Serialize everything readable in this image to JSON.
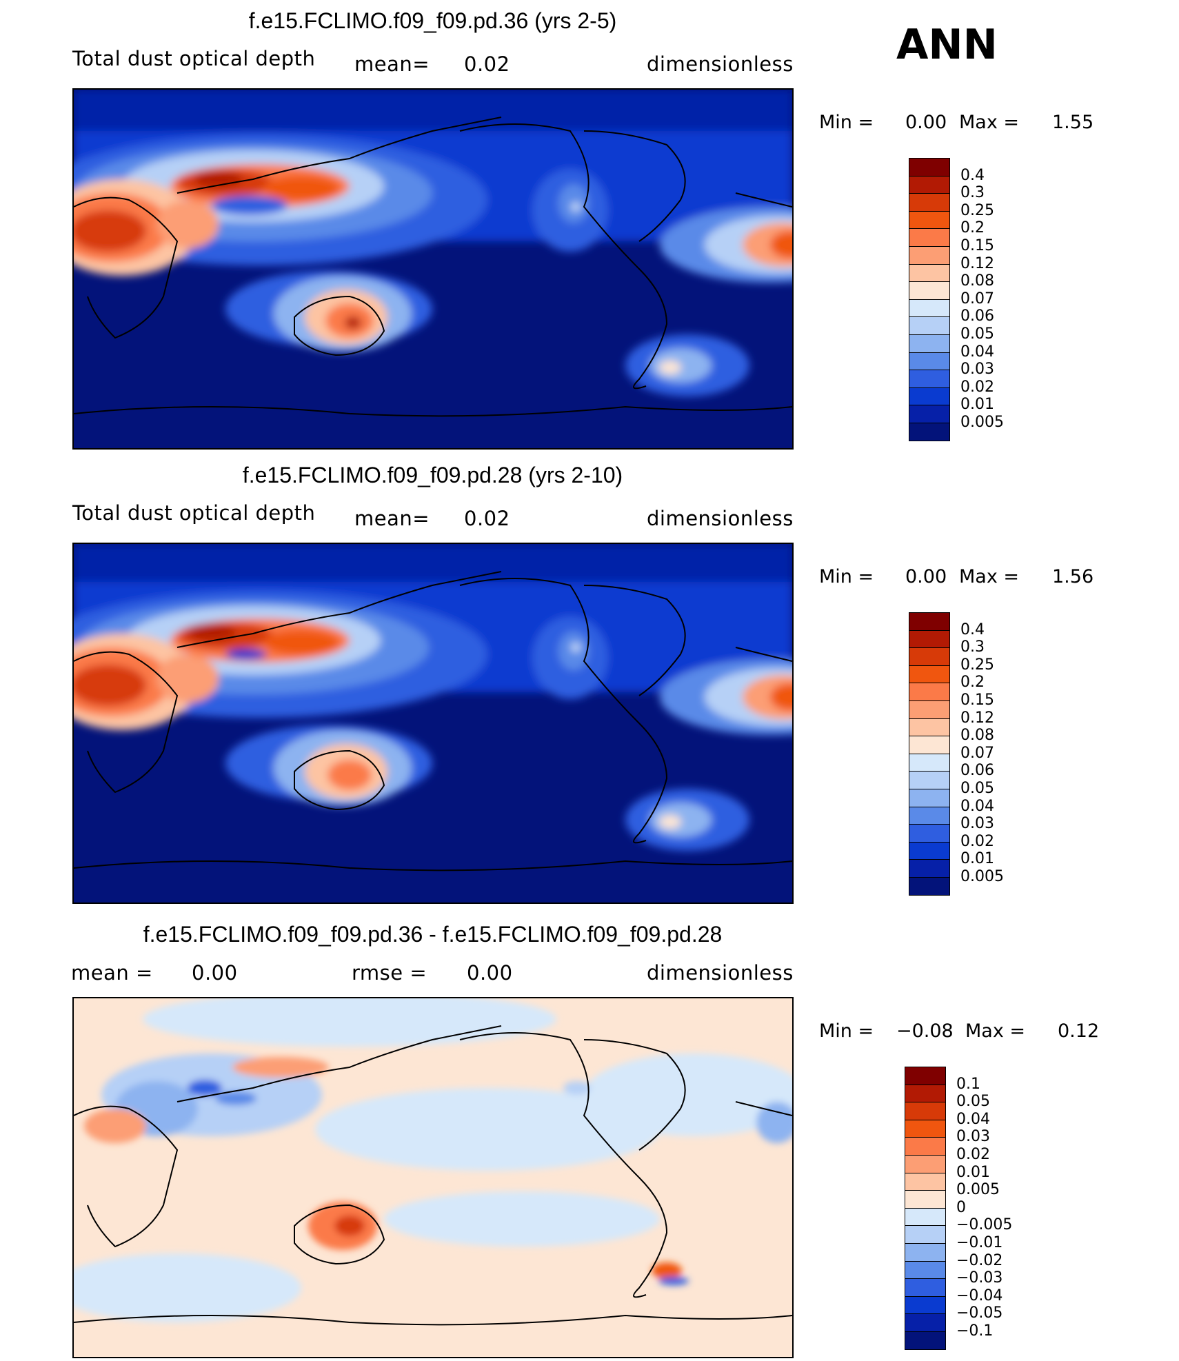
{
  "season": "ANN",
  "panels": [
    {
      "title": "f.e15.FCLIMO.f09_f09.pd.36 (yrs 2-5)",
      "variable": "Total dust optical depth",
      "stat1_label": "mean=",
      "stat1_value": "0.02",
      "units": "dimensionless",
      "min_label": "Min  =",
      "min_value": "0.00",
      "max_label": "Max  =",
      "max_value": "1.55",
      "colorbar_levels": [
        "0.4",
        "0.3",
        "0.25",
        "0.2",
        "0.15",
        "0.12",
        "0.08",
        "0.07",
        "0.06",
        "0.05",
        "0.04",
        "0.03",
        "0.02",
        "0.01",
        "0.005"
      ],
      "colorbar_colors": [
        "#7f0000",
        "#b21a04",
        "#d73a08",
        "#f0560f",
        "#fb7a48",
        "#fc9e74",
        "#fdc4a3",
        "#fde6d4",
        "#d6e8fa",
        "#b6d0f6",
        "#8db3f0",
        "#5a8ae8",
        "#2f5ee0",
        "#0a3bd0",
        "#0620a8",
        "#03137a"
      ]
    },
    {
      "title": "f.e15.FCLIMO.f09_f09.pd.28 (yrs 2-10)",
      "variable": "Total dust optical depth",
      "stat1_label": "mean=",
      "stat1_value": "0.02",
      "units": "dimensionless",
      "min_label": "Min  =",
      "min_value": "0.00",
      "max_label": "Max  =",
      "max_value": "1.56",
      "colorbar_levels": [
        "0.4",
        "0.3",
        "0.25",
        "0.2",
        "0.15",
        "0.12",
        "0.08",
        "0.07",
        "0.06",
        "0.05",
        "0.04",
        "0.03",
        "0.02",
        "0.01",
        "0.005"
      ],
      "colorbar_colors": [
        "#7f0000",
        "#b21a04",
        "#d73a08",
        "#f0560f",
        "#fb7a48",
        "#fc9e74",
        "#fdc4a3",
        "#fde6d4",
        "#d6e8fa",
        "#b6d0f6",
        "#8db3f0",
        "#5a8ae8",
        "#2f5ee0",
        "#0a3bd0",
        "#0620a8",
        "#03137a"
      ]
    },
    {
      "title": "f.e15.FCLIMO.f09_f09.pd.36 - f.e15.FCLIMO.f09_f09.pd.28",
      "stat1_label": "mean  =",
      "stat1_value": "0.00",
      "stat2_label": "rmse  =",
      "stat2_value": "0.00",
      "units": "dimensionless",
      "min_label": "Min  =",
      "min_value": "−0.08",
      "max_label": "Max  =",
      "max_value": "0.12",
      "colorbar_levels": [
        "0.1",
        "0.05",
        "0.04",
        "0.03",
        "0.02",
        "0.01",
        "0.005",
        "0",
        "−0.005",
        "−0.01",
        "−0.02",
        "−0.03",
        "−0.04",
        "−0.05",
        "−0.1"
      ],
      "colorbar_colors": [
        "#7f0000",
        "#b21a04",
        "#d73a08",
        "#f0560f",
        "#fb7a48",
        "#fc9e74",
        "#fdc4a3",
        "#fde6d4",
        "#d6e8fa",
        "#b6d0f6",
        "#8db3f0",
        "#5a8ae8",
        "#2f5ee0",
        "#0a3bd0",
        "#0620a8",
        "#03137a"
      ]
    }
  ],
  "map_colors": {
    "ocean_low": "#03137a",
    "diff_background": "#fde6d4",
    "diff_light_blue": "#d6e8fa"
  }
}
